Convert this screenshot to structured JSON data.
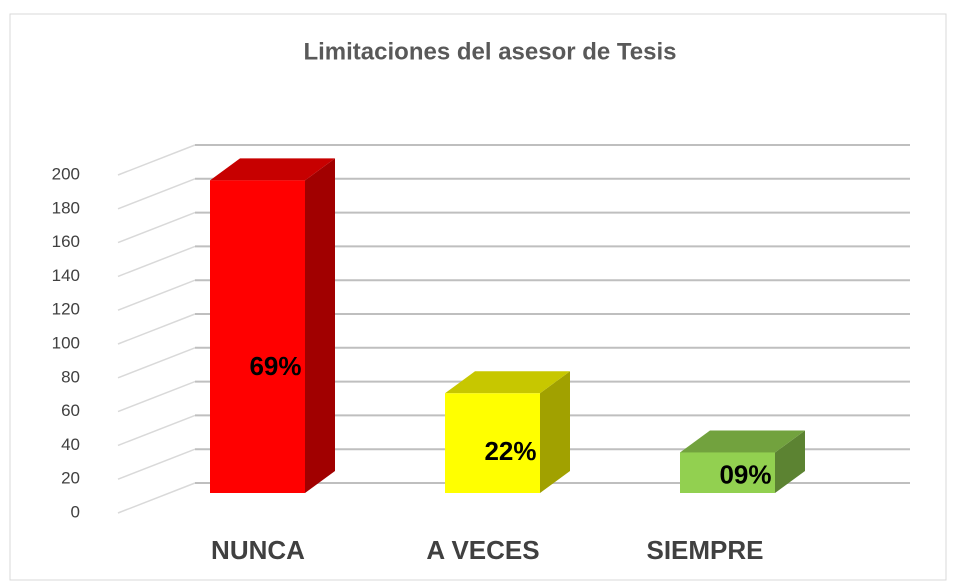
{
  "chart_data": {
    "type": "bar3d",
    "title": "Limitaciones del asesor de Tesis",
    "categories": [
      "NUNCA",
      "A VECES",
      "SIEMPRE"
    ],
    "values": [
      185,
      59,
      24
    ],
    "annotations": [
      "69%",
      "22%",
      "09%"
    ],
    "colors": [
      "#ff0000",
      "#ffff00",
      "#92d050"
    ],
    "ylim": [
      0,
      200
    ],
    "yticks": [
      0,
      20,
      40,
      60,
      80,
      100,
      120,
      140,
      160,
      180,
      200
    ],
    "grid": true
  }
}
